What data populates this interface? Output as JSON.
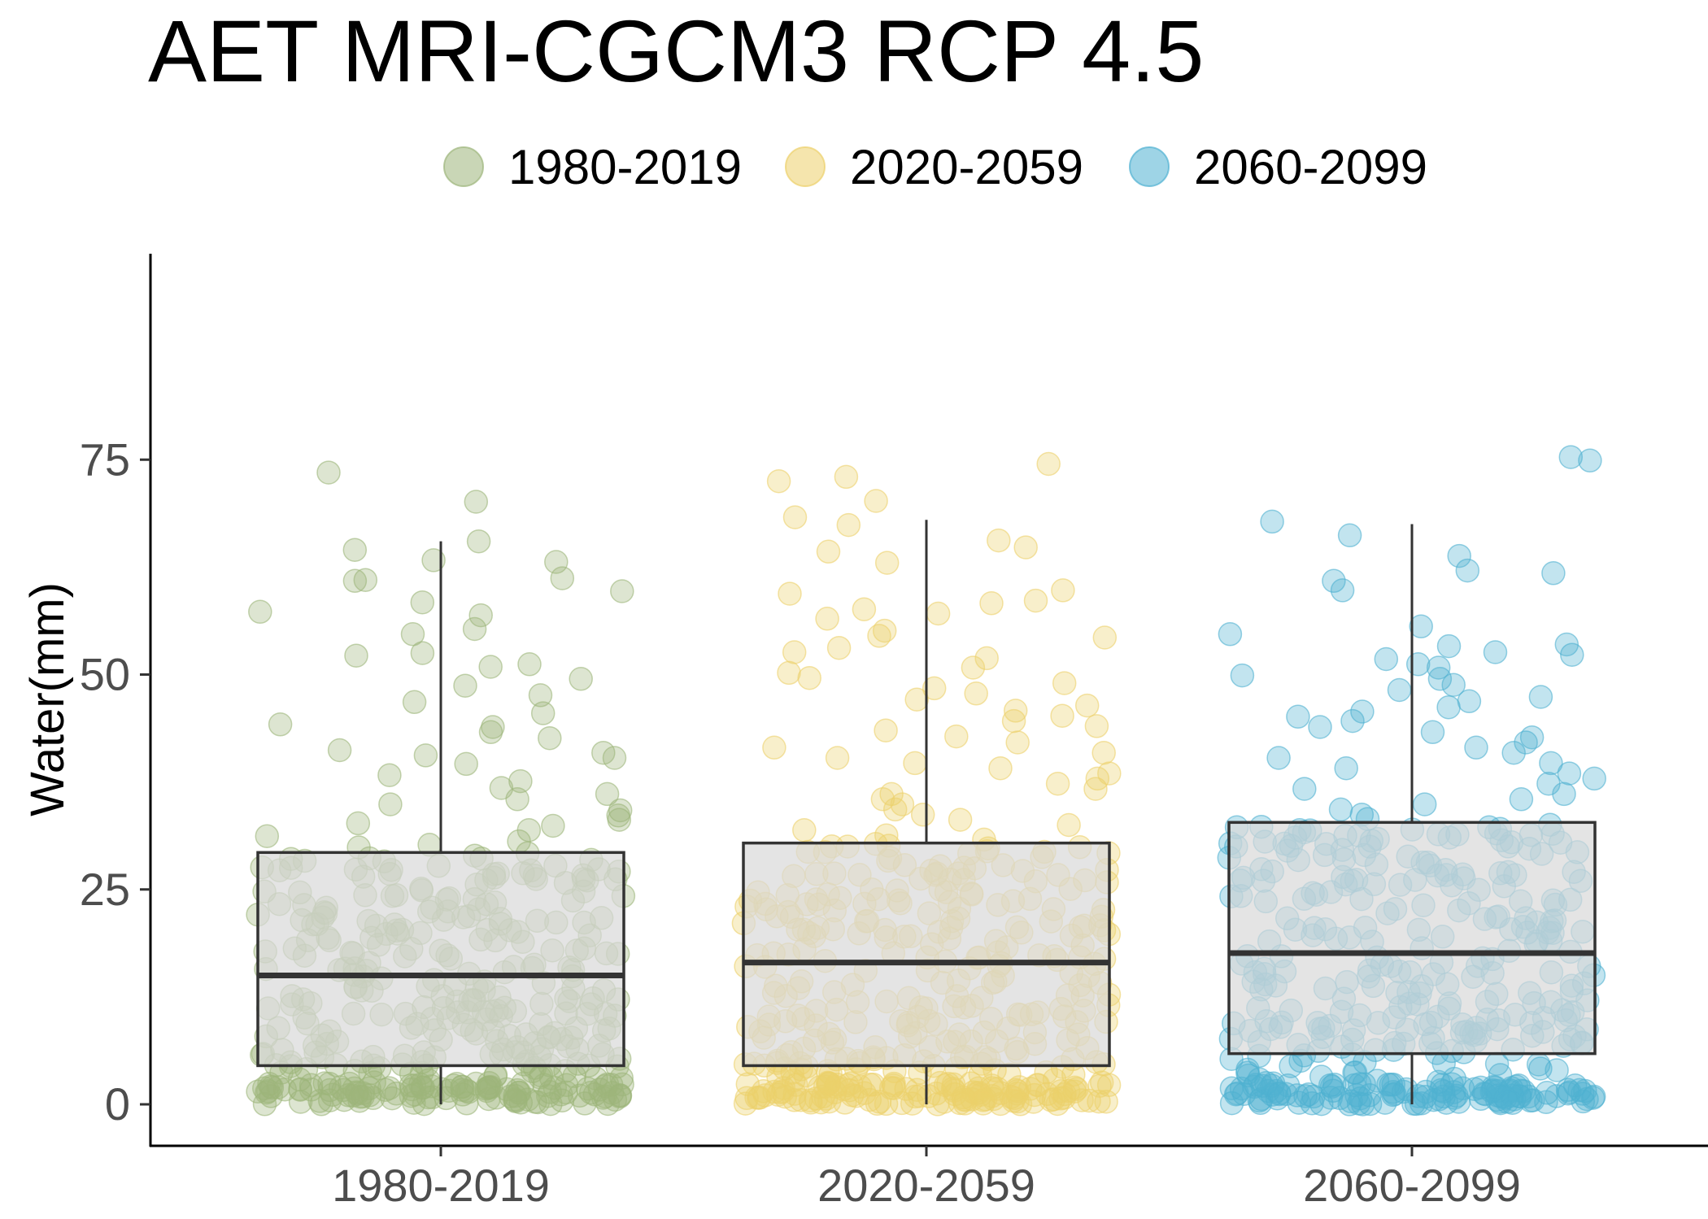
{
  "chart_data": {
    "type": "boxplot",
    "title": "AET MRI-CGCM3 RCP 4.5",
    "ylabel": "Water(mm)",
    "xlabel": "",
    "ylim": [
      -5,
      100
    ],
    "yticks": [
      0,
      25,
      50,
      75
    ],
    "grid": false,
    "legend_position": "top",
    "categories": [
      "1980-2019",
      "2020-2059",
      "2060-2099"
    ],
    "series": [
      {
        "name": "1980-2019",
        "color": "#9db57a",
        "box": {
          "min": 0,
          "q1": 4.5,
          "median": 15.0,
          "q3": 29.3,
          "max": 65.5
        },
        "points_high": [
          73.5,
          70.1,
          65.5,
          64.5,
          63.3,
          63.1,
          61.2,
          61.0,
          60.9,
          59.7,
          58.4,
          57.3,
          56.9,
          55.3,
          54.7,
          52.5,
          52.2,
          51.2,
          50.9,
          49.5,
          48.7,
          47.6,
          46.8,
          45.5,
          44.2,
          43.9,
          43.3,
          42.6,
          41.2,
          40.9,
          40.6,
          40.3,
          39.6,
          38.3,
          37.6,
          36.8,
          36.1,
          35.5,
          34.9,
          34.2,
          33.6,
          33.1,
          32.7,
          32.4,
          31.9,
          31.2,
          30.6,
          30.2,
          29.9
        ]
      },
      {
        "name": "2020-2059",
        "color": "#ecd06a",
        "box": {
          "min": 0,
          "q1": 4.5,
          "median": 16.5,
          "q3": 30.4,
          "max": 68.0
        },
        "points_high": [
          74.5,
          73.0,
          72.5,
          70.2,
          68.3,
          67.4,
          65.6,
          64.3,
          64.8,
          63.0,
          59.8,
          59.4,
          58.6,
          58.3,
          57.6,
          57.1,
          56.5,
          55.1,
          54.5,
          54.3,
          53.1,
          52.6,
          51.9,
          50.8,
          50.2,
          49.6,
          49.0,
          48.4,
          47.8,
          47.1,
          46.4,
          45.8,
          45.2,
          44.6,
          44.0,
          43.5,
          42.8,
          42.1,
          41.5,
          40.9,
          40.3,
          39.7,
          39.1,
          38.5,
          37.9,
          37.3,
          36.7,
          36.1,
          35.5,
          34.9,
          34.3,
          33.7,
          33.1,
          32.5,
          31.9,
          31.3,
          30.8
        ]
      },
      {
        "name": "2060-2099",
        "color": "#4fb1d1",
        "box": {
          "min": 0,
          "q1": 5.9,
          "median": 17.6,
          "q3": 32.8,
          "max": 67.5
        },
        "points_high": [
          75.3,
          74.9,
          67.8,
          66.2,
          63.8,
          62.1,
          61.8,
          60.9,
          59.8,
          55.6,
          54.7,
          53.5,
          53.3,
          52.6,
          52.3,
          51.8,
          51.2,
          50.8,
          49.9,
          49.5,
          48.8,
          48.2,
          47.4,
          46.9,
          46.2,
          45.7,
          45.1,
          44.6,
          43.9,
          43.3,
          42.7,
          42.1,
          41.5,
          40.9,
          40.3,
          39.7,
          39.1,
          38.5,
          37.9,
          37.3,
          36.7,
          36.1,
          35.5,
          34.9,
          34.3,
          33.7,
          33.2
        ]
      }
    ],
    "points_per_group": 480
  }
}
